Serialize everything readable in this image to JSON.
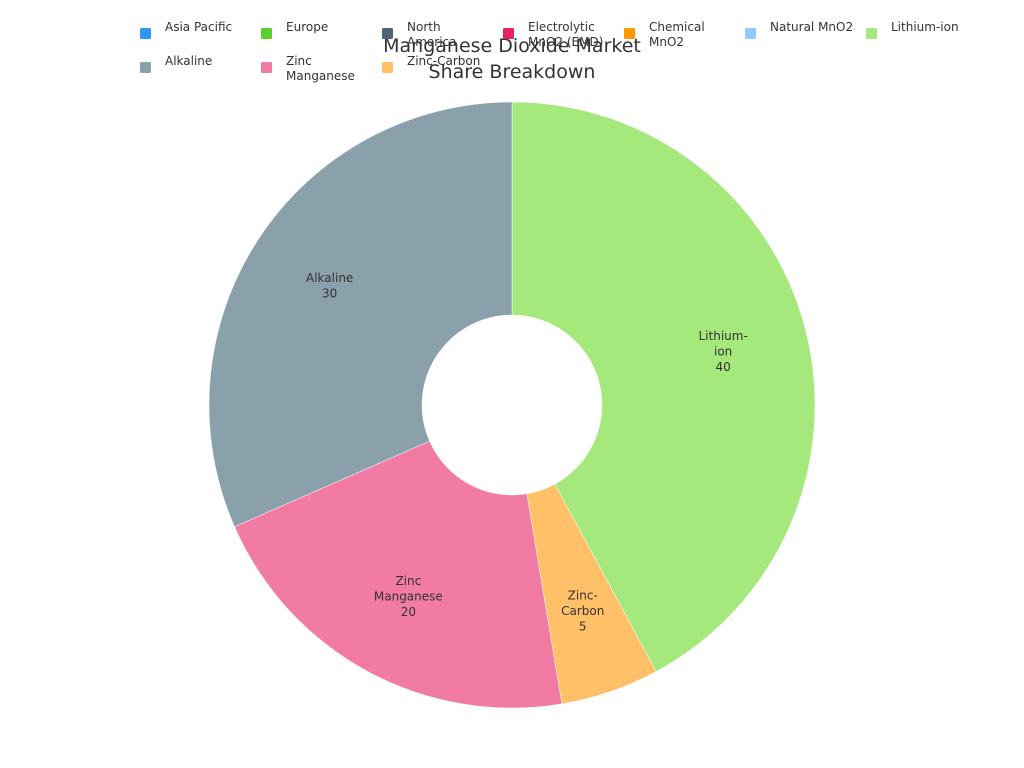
{
  "chart_data": {
    "type": "pie",
    "donut": true,
    "title": "Manganese Dioxide Market Share Breakdown",
    "legend_position": "top",
    "legend": [
      {
        "label": "Asia Pacific",
        "color": "#2f96f3"
      },
      {
        "label": "Europe",
        "color": "#5ad02e"
      },
      {
        "label": "North America",
        "color": "#4f6472"
      },
      {
        "label": "Electrolytic MnO2 (EMD)",
        "color": "#e91e63"
      },
      {
        "label": "Chemical MnO2",
        "color": "#ff9800"
      },
      {
        "label": "Natural MnO2",
        "color": "#90caf9"
      },
      {
        "label": "Lithium-ion",
        "color": "#a5e87c"
      },
      {
        "label": "Alkaline",
        "color": "#8aa1ab"
      },
      {
        "label": "Zinc Manganese",
        "color": "#f27ba3"
      },
      {
        "label": "Zinc-Carbon",
        "color": "#ffc067"
      }
    ],
    "slices": [
      {
        "label": "Lithium-ion",
        "value": 40,
        "color": "#a5e87c"
      },
      {
        "label": "Zinc-Carbon",
        "value": 5,
        "color": "#ffc067"
      },
      {
        "label": "Zinc Manganese",
        "value": 20,
        "color": "#f27ba3"
      },
      {
        "label": "Alkaline",
        "value": 30,
        "color": "#8aa1ab"
      }
    ]
  }
}
